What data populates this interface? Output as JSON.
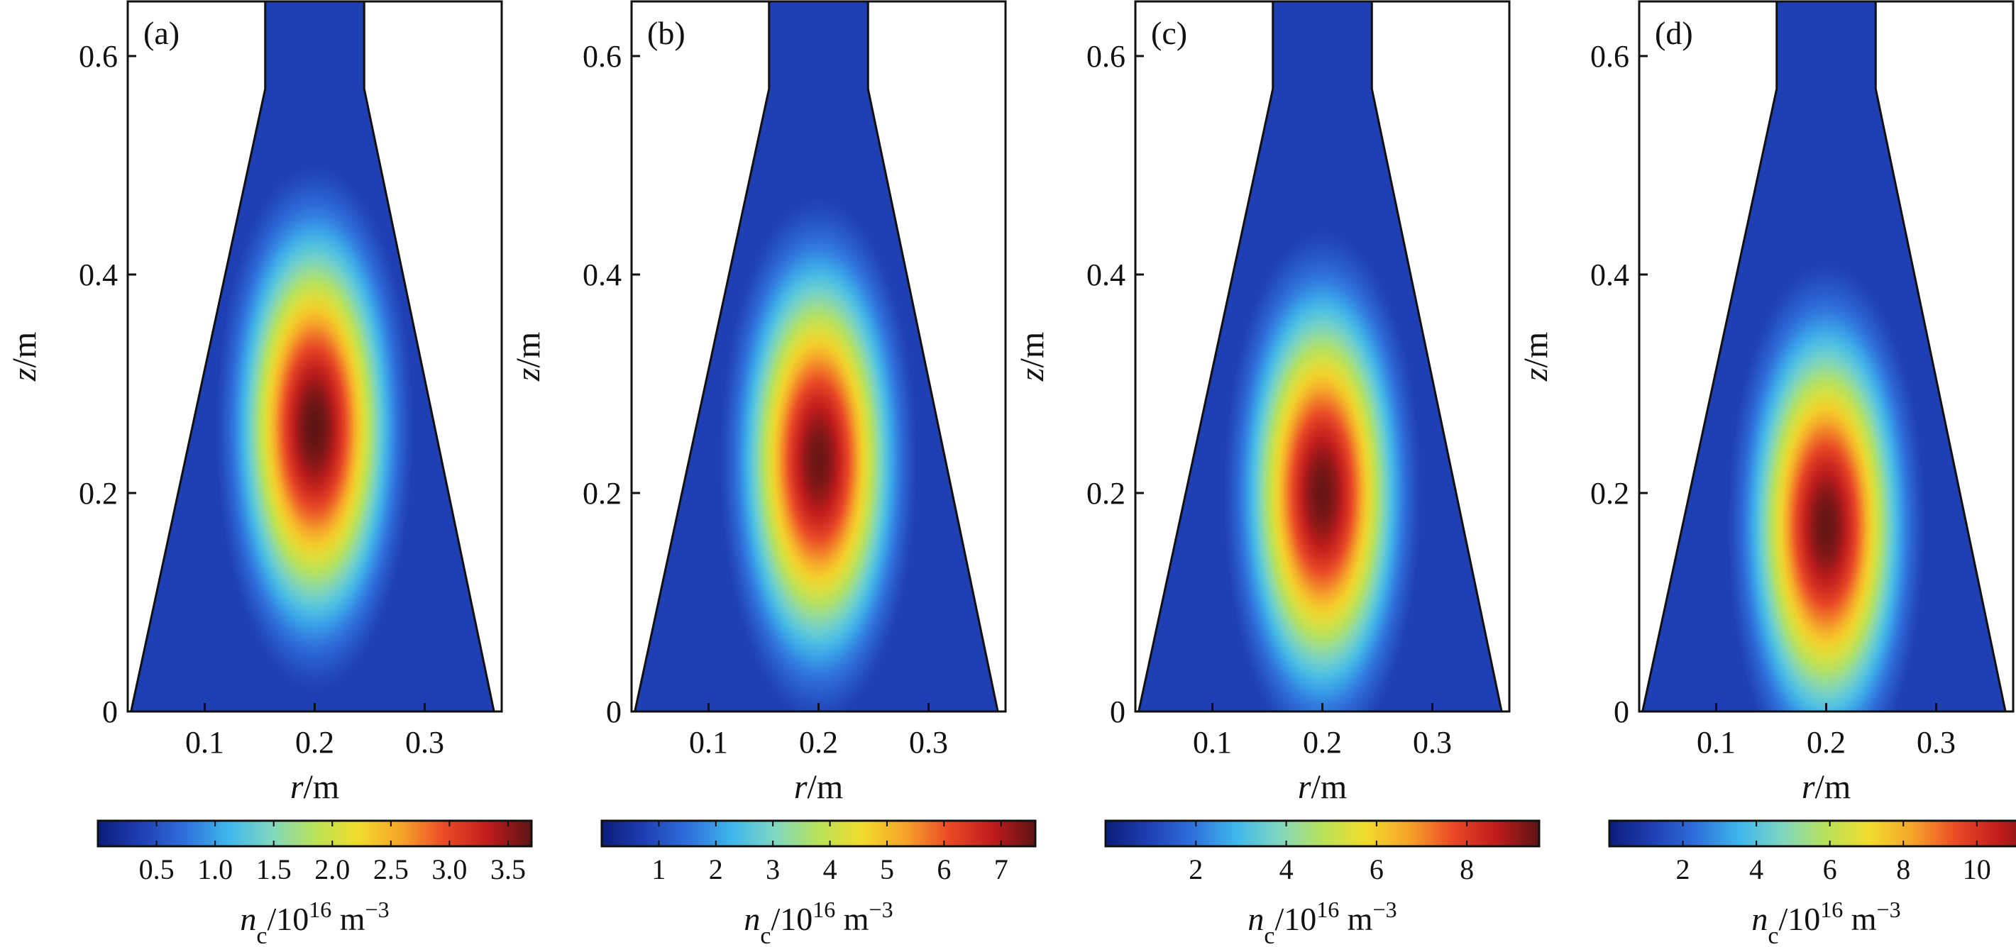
{
  "figure": {
    "colormap": [
      "#0b1d7a",
      "#1f3fb4",
      "#2f6fdc",
      "#3fb7ec",
      "#7fd7c0",
      "#b9e25a",
      "#f1dc2c",
      "#f6a32a",
      "#ea4a26",
      "#c01c1c",
      "#5c1414"
    ],
    "axis_color": "#111111"
  },
  "chart_data": [
    {
      "type": "heatmap",
      "panel_tag": "(a)",
      "xlabel": "r/m",
      "ylabel": "z/m",
      "xlim": [
        0.03,
        0.37
      ],
      "ylim": [
        0,
        0.65
      ],
      "xticks": [
        0.1,
        0.2,
        0.3
      ],
      "xtick_labels": [
        "0.1",
        "0.2",
        "0.3"
      ],
      "yticks": [
        0,
        0.2,
        0.4,
        0.6
      ],
      "ytick_labels": [
        "0",
        "0.2",
        "0.4",
        "0.6"
      ],
      "colorbar": {
        "min": 0,
        "max": 3.7,
        "ticks": [
          0.5,
          1.0,
          1.5,
          2.0,
          2.5,
          3.0,
          3.5
        ],
        "tick_labels": [
          "0.5",
          "1.0",
          "1.5",
          "2.0",
          "2.5",
          "3.0",
          "3.5"
        ],
        "label": "nc/1016 m−3"
      },
      "peak": {
        "r": 0.2,
        "z": 0.26,
        "value": 3.7
      }
    },
    {
      "type": "heatmap",
      "panel_tag": "(b)",
      "xlabel": "r/m",
      "ylabel": "z/m",
      "xlim": [
        0.03,
        0.37
      ],
      "ylim": [
        0,
        0.65
      ],
      "xticks": [
        0.1,
        0.2,
        0.3
      ],
      "xtick_labels": [
        "0.1",
        "0.2",
        "0.3"
      ],
      "yticks": [
        0,
        0.2,
        0.4,
        0.6
      ],
      "ytick_labels": [
        "0",
        "0.2",
        "0.4",
        "0.6"
      ],
      "colorbar": {
        "min": 0,
        "max": 7.6,
        "ticks": [
          1,
          2,
          3,
          4,
          5,
          6,
          7
        ],
        "tick_labels": [
          "1",
          "2",
          "3",
          "4",
          "5",
          "6",
          "7"
        ],
        "label": "nc/1016 m−3"
      },
      "peak": {
        "r": 0.2,
        "z": 0.23,
        "value": 7.5
      }
    },
    {
      "type": "heatmap",
      "panel_tag": "(c)",
      "xlabel": "r/m",
      "ylabel": "z/m",
      "xlim": [
        0.03,
        0.37
      ],
      "ylim": [
        0,
        0.65
      ],
      "xticks": [
        0.1,
        0.2,
        0.3
      ],
      "xtick_labels": [
        "0.1",
        "0.2",
        "0.3"
      ],
      "yticks": [
        0,
        0.2,
        0.4,
        0.6
      ],
      "ytick_labels": [
        "0",
        "0.2",
        "0.4",
        "0.6"
      ],
      "colorbar": {
        "min": 0,
        "max": 9.6,
        "ticks": [
          2,
          4,
          6,
          8
        ],
        "tick_labels": [
          "2",
          "4",
          "6",
          "8"
        ],
        "label": "nc/1016 m−3"
      },
      "peak": {
        "r": 0.2,
        "z": 0.2,
        "value": 9.5
      }
    },
    {
      "type": "heatmap",
      "panel_tag": "(d)",
      "xlabel": "r/m",
      "ylabel": "z/m",
      "xlim": [
        0.03,
        0.37
      ],
      "ylim": [
        0,
        0.65
      ],
      "xticks": [
        0.1,
        0.2,
        0.3
      ],
      "xtick_labels": [
        "0.1",
        "0.2",
        "0.3"
      ],
      "yticks": [
        0,
        0.2,
        0.4,
        0.6
      ],
      "ytick_labels": [
        "0",
        "0.2",
        "0.4",
        "0.6"
      ],
      "colorbar": {
        "min": 0,
        "max": 11.8,
        "ticks": [
          2,
          4,
          6,
          8,
          10
        ],
        "tick_labels": [
          "2",
          "4",
          "6",
          "8",
          "10"
        ],
        "label": "nc/1016 m−3"
      },
      "peak": {
        "r": 0.2,
        "z": 0.17,
        "value": 11.7
      }
    }
  ]
}
